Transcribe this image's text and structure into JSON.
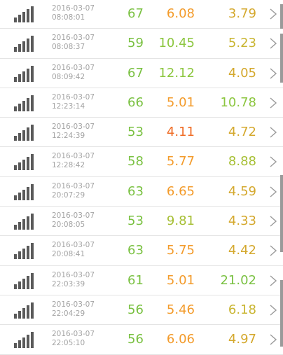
{
  "colors": {
    "green": "#7ac142",
    "orange": "#f39b2b",
    "olive": "#c9b531",
    "red_orange": "#ef6b24",
    "date_gray": "#a3a3a3",
    "icon_gray": "#5a5a5a"
  },
  "rows": [
    {
      "date": "2016-03-07",
      "time": "08:08:01",
      "v1": "67",
      "v1_color": "#7ac142",
      "v2": "6.08",
      "v2_color": "#f39b2b",
      "v3": "3.79",
      "v3_color": "#d4a82d"
    },
    {
      "date": "2016-03-07",
      "time": "08:08:37",
      "v1": "59",
      "v1_color": "#7ac142",
      "v2": "10.45",
      "v2_color": "#8cc63f",
      "v3": "5.23",
      "v3_color": "#c9b531"
    },
    {
      "date": "2016-03-07",
      "time": "08:09:42",
      "v1": "67",
      "v1_color": "#7ac142",
      "v2": "12.12",
      "v2_color": "#8cc63f",
      "v3": "4.05",
      "v3_color": "#d4a82d"
    },
    {
      "date": "2016-03-07",
      "time": "12:23:14",
      "v1": "66",
      "v1_color": "#7ac142",
      "v2": "5.01",
      "v2_color": "#f39b2b",
      "v3": "10.78",
      "v3_color": "#8cc63f"
    },
    {
      "date": "2016-03-07",
      "time": "12:24:39",
      "v1": "53",
      "v1_color": "#7ac142",
      "v2": "4.11",
      "v2_color": "#ef6b24",
      "v3": "4.72",
      "v3_color": "#d4a82d"
    },
    {
      "date": "2016-03-07",
      "time": "12:28:42",
      "v1": "58",
      "v1_color": "#7ac142",
      "v2": "5.77",
      "v2_color": "#f39b2b",
      "v3": "8.88",
      "v3_color": "#a6bf34"
    },
    {
      "date": "2016-03-07",
      "time": "20:07:29",
      "v1": "63",
      "v1_color": "#7ac142",
      "v2": "6.65",
      "v2_color": "#f39b2b",
      "v3": "4.59",
      "v3_color": "#d4a82d"
    },
    {
      "date": "2016-03-07",
      "time": "20:08:05",
      "v1": "53",
      "v1_color": "#7ac142",
      "v2": "9.81",
      "v2_color": "#a6bf34",
      "v3": "4.33",
      "v3_color": "#d4a82d"
    },
    {
      "date": "2016-03-07",
      "time": "20:08:41",
      "v1": "63",
      "v1_color": "#7ac142",
      "v2": "5.75",
      "v2_color": "#f39b2b",
      "v3": "4.42",
      "v3_color": "#d4a82d"
    },
    {
      "date": "2016-03-07",
      "time": "22:03:39",
      "v1": "61",
      "v1_color": "#7ac142",
      "v2": "5.01",
      "v2_color": "#f39b2b",
      "v3": "21.02",
      "v3_color": "#7ac142"
    },
    {
      "date": "2016-03-07",
      "time": "22:04:29",
      "v1": "56",
      "v1_color": "#7ac142",
      "v2": "5.46",
      "v2_color": "#f39b2b",
      "v3": "6.18",
      "v3_color": "#c9b531"
    },
    {
      "date": "2016-03-07",
      "time": "22:05:10",
      "v1": "56",
      "v1_color": "#7ac142",
      "v2": "6.06",
      "v2_color": "#f39b2b",
      "v3": "4.97",
      "v3_color": "#d4a82d"
    }
  ],
  "icons": {
    "row_icon": "signal-strength-icon",
    "row_action": "chevron-right-icon"
  }
}
